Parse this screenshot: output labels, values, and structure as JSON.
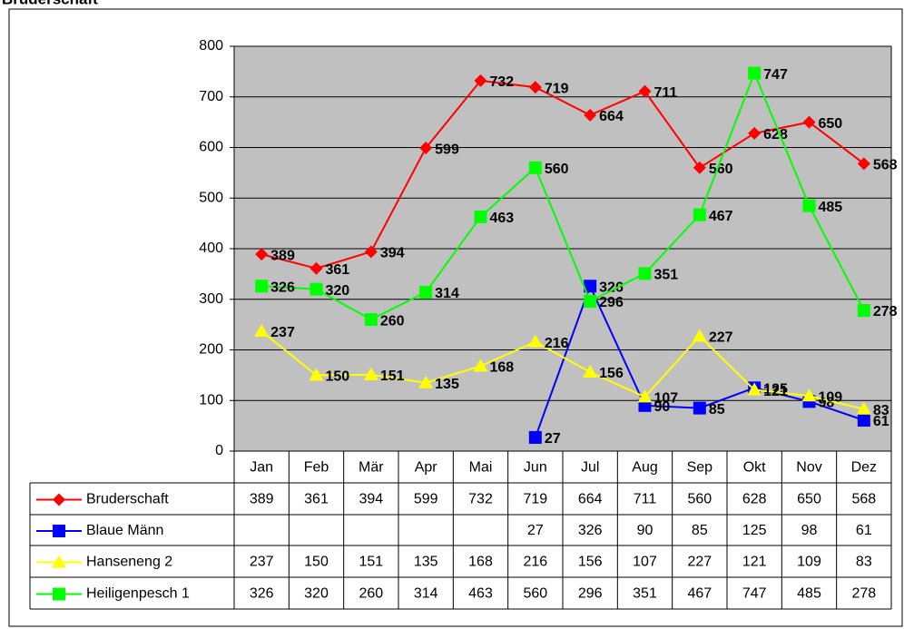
{
  "chart_data": {
    "type": "line",
    "title": "Bruderschaft",
    "categories": [
      "Jan",
      "Feb",
      "Mär",
      "Apr",
      "Mai",
      "Jun",
      "Jul",
      "Aug",
      "Sep",
      "Okt",
      "Nov",
      "Dez"
    ],
    "series": [
      {
        "name": "Bruderschaft",
        "color": "#ff0000",
        "marker": "diamond",
        "values": [
          389,
          361,
          394,
          599,
          732,
          719,
          664,
          711,
          560,
          628,
          650,
          568
        ]
      },
      {
        "name": "Blaue Männ",
        "color": "#0000ff",
        "marker": "square",
        "values": [
          null,
          null,
          null,
          null,
          null,
          27,
          326,
          90,
          85,
          125,
          98,
          61
        ]
      },
      {
        "name": "Hanseneng 2",
        "color": "#ffff00",
        "marker": "triangle",
        "values": [
          237,
          150,
          151,
          135,
          168,
          216,
          156,
          107,
          227,
          121,
          109,
          83
        ]
      },
      {
        "name": "Heiligenpesch 1",
        "color": "#00ff00",
        "marker": "square",
        "values": [
          326,
          320,
          260,
          314,
          463,
          560,
          296,
          351,
          467,
          747,
          485,
          278
        ]
      }
    ],
    "ylim": [
      0,
      800
    ],
    "yticks": [
      0,
      100,
      200,
      300,
      400,
      500,
      600,
      700,
      800
    ],
    "grid": true
  }
}
